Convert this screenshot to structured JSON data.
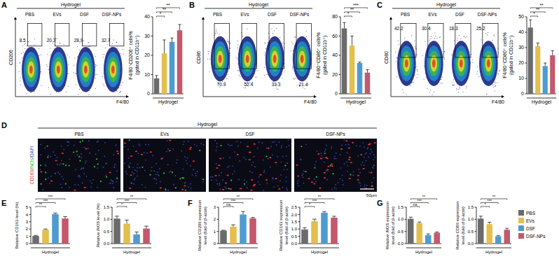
{
  "flow_panels": [
    {
      "panel_label": "A",
      "group_label": "Hydrogel",
      "groups": [
        "PBS",
        "EVs",
        "DSF",
        "DSF-NPs"
      ],
      "y_marker": "CD206",
      "x_marker": "F4/80",
      "percentages": [
        8.5,
        20.3,
        28.9,
        32.7
      ]
    },
    {
      "panel_label": "B",
      "group_label": "Hydrogel",
      "groups": [
        "PBS",
        "EVs",
        "DSF",
        "DSF-NPs"
      ],
      "y_marker": "CD86",
      "x_marker": "F4/80",
      "percentages": [
        70.9,
        52.4,
        33.3,
        21.4
      ]
    },
    {
      "panel_label": "C",
      "group_label": "Hydrogel",
      "groups": [
        "PBS",
        "EVs",
        "DSF",
        "DSF-NPs"
      ],
      "y_marker": "CD80",
      "x_marker": "F4/80",
      "percentages": [
        42.2,
        30.4,
        18.3,
        25.2
      ]
    }
  ],
  "image_panel": {
    "panel_label": "D",
    "group_label": "Hydrogel",
    "groups": [
      "PBS",
      "EVs",
      "DSF",
      "DSF-NPs"
    ],
    "stain_label": "CD163/iNOS/DAPI",
    "stain_colors": [
      "#e8302c",
      "#2fbf3a",
      "#3a55d8"
    ],
    "scale_bar": "50μm"
  },
  "chart_data": [
    {
      "type": "bar",
      "y_label": [
        "F4/80⁺CD206⁺ cells%",
        "(gated in CD11b⁺)"
      ],
      "x_label": "Hydrogel",
      "categories": [
        "PBS",
        "EVs",
        "DSF",
        "DSF-NPs"
      ],
      "colors": [
        "#6b6b6b",
        "#e3bf4c",
        "#4f9bd0",
        "#c4586c"
      ],
      "values": [
        8,
        21,
        27,
        33
      ],
      "errors": [
        1.5,
        7,
        2,
        3
      ],
      "ylim": [
        0,
        40
      ],
      "yticks": [
        0,
        10,
        20,
        30,
        40
      ],
      "significance": [
        "*",
        "**",
        "**"
      ]
    },
    {
      "type": "bar",
      "y_label": [
        "F4/80⁺CD86⁺ cells%",
        "(gated in CD11b⁺)"
      ],
      "x_label": "Hydrogel",
      "categories": [
        "PBS",
        "EVs",
        "DSF",
        "DSF-NPs"
      ],
      "colors": [
        "#6b6b6b",
        "#e3bf4c",
        "#4f9bd0",
        "#c4586c"
      ],
      "values": [
        68,
        50,
        32,
        22
      ],
      "errors": [
        6,
        10,
        1,
        3
      ],
      "ylim": [
        0,
        80
      ],
      "yticks": [
        0,
        20,
        40,
        60,
        80
      ],
      "significance": [
        "*",
        "**",
        "***"
      ]
    },
    {
      "type": "bar",
      "y_label": [
        "F4/80⁺CD80⁺ cells%",
        "(gated in CD11b⁺)"
      ],
      "x_label": "Hydrogel",
      "categories": [
        "PBS",
        "EVs",
        "DSF",
        "DSF-NPs"
      ],
      "colors": [
        "#6b6b6b",
        "#e3bf4c",
        "#4f9bd0",
        "#c4586c"
      ],
      "values": [
        43,
        31,
        18,
        25
      ],
      "errors": [
        5,
        2,
        2,
        3
      ],
      "ylim": [
        0,
        50
      ],
      "yticks": [
        0,
        10,
        20,
        30,
        40,
        50
      ],
      "significance": [
        "*",
        "**",
        "**"
      ]
    },
    {
      "type": "bar",
      "panel_label": "E",
      "y_label": [
        "Relative CD163 level (%)"
      ],
      "x_label": "Hydrogel",
      "categories": [
        "PBS",
        "EVs",
        "DSF",
        "DSF-NPs"
      ],
      "colors": [
        "#6b6b6b",
        "#e3bf4c",
        "#4f9bd0",
        "#c4586c"
      ],
      "values": [
        1.05,
        1.9,
        4.05,
        3.45
      ],
      "errors": [
        0.08,
        0.1,
        0.15,
        0.25
      ],
      "ylim": [
        0,
        5
      ],
      "yticks": [
        0,
        1,
        2,
        3,
        4,
        5
      ],
      "significance": [
        "**",
        "***",
        "***"
      ]
    },
    {
      "type": "bar",
      "y_label": [
        "Relative iNOS level (%)"
      ],
      "x_label": "Hydrogel",
      "categories": [
        "PBS",
        "EVs",
        "DSF",
        "DSF-NPs"
      ],
      "colors": [
        "#6b6b6b",
        "#e3bf4c",
        "#4f9bd0",
        "#c4586c"
      ],
      "values": [
        1.03,
        0.82,
        0.38,
        0.62
      ],
      "errors": [
        0.1,
        0.15,
        0.1,
        0.1
      ],
      "ylim": [
        0,
        1.5
      ],
      "yticks": [
        {
          "value": 0,
          "label": "0.0"
        },
        {
          "value": 0.5,
          "label": "0.5"
        },
        {
          "value": 1,
          "label": "1.0"
        },
        {
          "value": 1.5,
          "label": "1.5"
        }
      ],
      "significance": [
        "*",
        "***",
        "**"
      ]
    },
    {
      "type": "bar",
      "panel_label": "F",
      "y_label": [
        "Relative CD206 expression",
        "level (fold of β-actin)"
      ],
      "x_label": "Hydrogel",
      "categories": [
        "PBS",
        "EVs",
        "DSF",
        "DSF-NPs"
      ],
      "colors": [
        "#6b6b6b",
        "#e3bf4c",
        "#4f9bd0",
        "#c4586c"
      ],
      "values": [
        1.07,
        1.4,
        2.4,
        2.08
      ],
      "errors": [
        0.03,
        0.15,
        0.25,
        0.08
      ],
      "ylim": [
        0,
        3
      ],
      "yticks": [
        0,
        1,
        2,
        3
      ],
      "significance": [
        "ns",
        "***",
        "**"
      ]
    },
    {
      "type": "bar",
      "y_label": [
        "Relative CD163 expression",
        "level (fold of β-actin)"
      ],
      "x_label": "Hydrogel",
      "categories": [
        "PBS",
        "EVs",
        "DSF",
        "DSF-NPs"
      ],
      "colors": [
        "#6b6b6b",
        "#e3bf4c",
        "#4f9bd0",
        "#c4586c"
      ],
      "values": [
        0.97,
        1.53,
        2.12,
        1.78
      ],
      "errors": [
        0.12,
        0.15,
        0.08,
        0.1
      ],
      "ylim": [
        0,
        2.5
      ],
      "yticks": [
        {
          "value": 0,
          "label": "0.0"
        },
        {
          "value": 0.5,
          "label": "0.5"
        },
        {
          "value": 1,
          "label": "1.0"
        },
        {
          "value": 1.5,
          "label": "1.5"
        },
        {
          "value": 2,
          "label": "2.0"
        },
        {
          "value": 2.5,
          "label": "2.5"
        }
      ],
      "significance": [
        "*",
        "***",
        "**"
      ]
    },
    {
      "type": "bar",
      "panel_label": "G",
      "y_label": [
        "Relative iNOS expression",
        "level (fold of β-actin)"
      ],
      "x_label": "Hydrogel",
      "categories": [
        "PBS",
        "EVs",
        "DSF",
        "DSF-NPs"
      ],
      "colors": [
        "#6b6b6b",
        "#e3bf4c",
        "#4f9bd0",
        "#c4586c"
      ],
      "values": [
        1.02,
        0.85,
        0.35,
        0.45
      ],
      "errors": [
        0.07,
        0.04,
        0.05,
        0.03
      ],
      "ylim": [
        0,
        1.5
      ],
      "yticks": [
        {
          "value": 0,
          "label": "0.0"
        },
        {
          "value": 0.5,
          "label": "0.5"
        },
        {
          "value": 1,
          "label": "1.0"
        },
        {
          "value": 1.5,
          "label": "1.5"
        }
      ],
      "significance": [
        "ns",
        "***",
        "**"
      ]
    },
    {
      "type": "bar",
      "y_label": [
        "Relative CD86 expression",
        "level (fold of β-actin)"
      ],
      "x_label": "Hydrogel",
      "categories": [
        "PBS",
        "EVs",
        "DSF",
        "DSF-NPs"
      ],
      "colors": [
        "#6b6b6b",
        "#e3bf4c",
        "#4f9bd0",
        "#c4586c"
      ],
      "values": [
        1.03,
        0.8,
        0.3,
        0.57
      ],
      "errors": [
        0.1,
        0.08,
        0.03,
        0.06
      ],
      "ylim": [
        0,
        1.5
      ],
      "yticks": [
        {
          "value": 0,
          "label": "0.0"
        },
        {
          "value": 0.5,
          "label": "0.5"
        },
        {
          "value": 1,
          "label": "1.0"
        },
        {
          "value": 1.5,
          "label": "1.5"
        }
      ],
      "significance": [
        "*",
        "***",
        "**"
      ],
      "legend": "right"
    }
  ]
}
